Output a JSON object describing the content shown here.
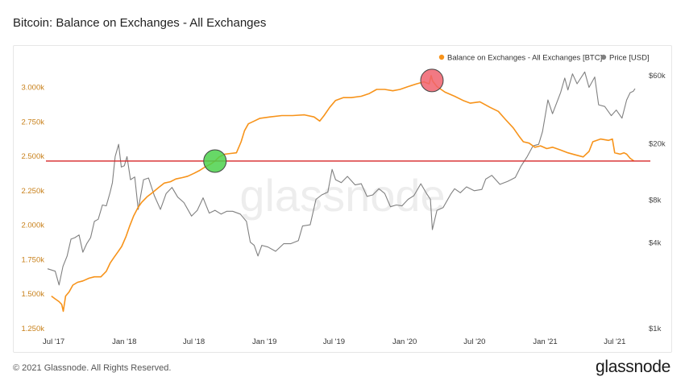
{
  "page": {
    "title": "Bitcoin: Balance on Exchanges - All Exchanges",
    "footer_copyright": "© 2021 Glassnode. All Rights Reserved.",
    "footer_logo": "glassnode",
    "watermark": "glassnode"
  },
  "colors": {
    "balance": "#f7931a",
    "price": "#808080",
    "reference_line": "#d62728",
    "marker_low": "#4cd14c",
    "marker_high": "#f0616d",
    "left_axis_text": "#c8801a",
    "right_axis_text": "#444444"
  },
  "chart_data": {
    "type": "line",
    "legend_position": "top-right",
    "grid": false,
    "x_ticks": [
      "Jul '17",
      "Jan '18",
      "Jul '18",
      "Jan '19",
      "Jul '19",
      "Jan '20",
      "Jul '20",
      "Jan '21",
      "Jul '21"
    ],
    "x_tick_dates": [
      "2017-07-01",
      "2018-01-01",
      "2018-07-01",
      "2019-01-01",
      "2019-07-01",
      "2020-01-01",
      "2020-07-01",
      "2021-01-01",
      "2021-07-01"
    ],
    "x_range": [
      "2017-06-15",
      "2021-08-25"
    ],
    "y_left": {
      "ticks": [
        1250,
        1500,
        1750,
        2000,
        2250,
        2500,
        2750,
        3000
      ],
      "tick_labels": [
        "1.250k",
        "1.500k",
        "1.750k",
        "2.000k",
        "2.250k",
        "2.500k",
        "2.750k",
        "3.000k"
      ],
      "range": [
        1250,
        3085
      ],
      "unit": "BTC"
    },
    "y_right": {
      "scale": "log",
      "ticks": [
        1000,
        4000,
        8000,
        20000,
        60000
      ],
      "tick_labels": [
        "$1k",
        "$4k",
        "$8k",
        "$20k",
        "$60k"
      ],
      "range": [
        1000,
        60000
      ],
      "unit": "USD"
    },
    "reference_line": {
      "axis": "left",
      "value": 2460
    },
    "markers": [
      {
        "date": "2018-08-25",
        "value": 2460,
        "axis": "left",
        "color_key": "marker_low"
      },
      {
        "date": "2020-03-12",
        "value": 3045,
        "axis": "left",
        "color_key": "marker_high"
      }
    ],
    "series": [
      {
        "name": "Balance on Exchanges - All Exchanges [BTC]",
        "axis": "left",
        "color_key": "balance",
        "points": [
          [
            "2017-06-25",
            1480
          ],
          [
            "2017-07-05",
            1460
          ],
          [
            "2017-07-15",
            1440
          ],
          [
            "2017-07-22",
            1420
          ],
          [
            "2017-07-26",
            1370
          ],
          [
            "2017-08-01",
            1480
          ],
          [
            "2017-08-10",
            1510
          ],
          [
            "2017-08-20",
            1560
          ],
          [
            "2017-09-01",
            1580
          ],
          [
            "2017-09-15",
            1590
          ],
          [
            "2017-10-01",
            1610
          ],
          [
            "2017-10-15",
            1620
          ],
          [
            "2017-11-01",
            1620
          ],
          [
            "2017-11-15",
            1660
          ],
          [
            "2017-11-25",
            1720
          ],
          [
            "2017-12-05",
            1760
          ],
          [
            "2017-12-15",
            1800
          ],
          [
            "2017-12-25",
            1840
          ],
          [
            "2018-01-05",
            1910
          ],
          [
            "2018-01-15",
            1990
          ],
          [
            "2018-01-25",
            2060
          ],
          [
            "2018-02-05",
            2120
          ],
          [
            "2018-02-15",
            2160
          ],
          [
            "2018-03-01",
            2200
          ],
          [
            "2018-03-15",
            2230
          ],
          [
            "2018-04-01",
            2270
          ],
          [
            "2018-04-15",
            2300
          ],
          [
            "2018-05-01",
            2310
          ],
          [
            "2018-05-15",
            2330
          ],
          [
            "2018-06-01",
            2340
          ],
          [
            "2018-06-15",
            2350
          ],
          [
            "2018-07-01",
            2370
          ],
          [
            "2018-07-15",
            2390
          ],
          [
            "2018-08-01",
            2420
          ],
          [
            "2018-08-15",
            2440
          ],
          [
            "2018-08-25",
            2460
          ],
          [
            "2018-09-05",
            2490
          ],
          [
            "2018-09-20",
            2510
          ],
          [
            "2018-10-05",
            2515
          ],
          [
            "2018-10-20",
            2520
          ],
          [
            "2018-11-01",
            2600
          ],
          [
            "2018-11-10",
            2680
          ],
          [
            "2018-11-20",
            2730
          ],
          [
            "2018-12-05",
            2750
          ],
          [
            "2018-12-20",
            2770
          ],
          [
            "2019-01-15",
            2780
          ],
          [
            "2019-02-15",
            2790
          ],
          [
            "2019-03-15",
            2790
          ],
          [
            "2019-04-15",
            2795
          ],
          [
            "2019-05-10",
            2780
          ],
          [
            "2019-05-25",
            2750
          ],
          [
            "2019-06-05",
            2790
          ],
          [
            "2019-06-20",
            2850
          ],
          [
            "2019-07-05",
            2900
          ],
          [
            "2019-07-25",
            2920
          ],
          [
            "2019-08-15",
            2920
          ],
          [
            "2019-09-10",
            2930
          ],
          [
            "2019-10-01",
            2950
          ],
          [
            "2019-10-20",
            2980
          ],
          [
            "2019-11-10",
            2980
          ],
          [
            "2019-12-01",
            2970
          ],
          [
            "2019-12-20",
            2980
          ],
          [
            "2020-01-10",
            3000
          ],
          [
            "2020-02-01",
            3020
          ],
          [
            "2020-02-20",
            3035
          ],
          [
            "2020-03-05",
            3020
          ],
          [
            "2020-03-10",
            3080
          ],
          [
            "2020-03-14",
            3040
          ],
          [
            "2020-03-25",
            3000
          ],
          [
            "2020-04-15",
            2960
          ],
          [
            "2020-05-10",
            2930
          ],
          [
            "2020-06-01",
            2900
          ],
          [
            "2020-06-20",
            2880
          ],
          [
            "2020-07-15",
            2890
          ],
          [
            "2020-08-10",
            2850
          ],
          [
            "2020-09-01",
            2820
          ],
          [
            "2020-09-20",
            2760
          ],
          [
            "2020-10-10",
            2700
          ],
          [
            "2020-10-25",
            2640
          ],
          [
            "2020-11-05",
            2600
          ],
          [
            "2020-11-20",
            2590
          ],
          [
            "2020-12-05",
            2560
          ],
          [
            "2020-12-20",
            2570
          ],
          [
            "2021-01-05",
            2550
          ],
          [
            "2021-01-20",
            2560
          ],
          [
            "2021-02-10",
            2540
          ],
          [
            "2021-03-01",
            2520
          ],
          [
            "2021-03-20",
            2505
          ],
          [
            "2021-04-10",
            2490
          ],
          [
            "2021-04-25",
            2530
          ],
          [
            "2021-05-05",
            2600
          ],
          [
            "2021-05-25",
            2620
          ],
          [
            "2021-06-15",
            2610
          ],
          [
            "2021-06-25",
            2620
          ],
          [
            "2021-07-01",
            2520
          ],
          [
            "2021-07-15",
            2510
          ],
          [
            "2021-07-25",
            2520
          ],
          [
            "2021-08-01",
            2510
          ],
          [
            "2021-08-10",
            2480
          ],
          [
            "2021-08-20",
            2460
          ]
        ]
      },
      {
        "name": "Price [USD]",
        "axis": "right",
        "color_key": "price",
        "points": [
          [
            "2017-06-15",
            2600
          ],
          [
            "2017-06-25",
            2550
          ],
          [
            "2017-07-05",
            2500
          ],
          [
            "2017-07-15",
            2000
          ],
          [
            "2017-07-25",
            2700
          ],
          [
            "2017-08-05",
            3200
          ],
          [
            "2017-08-15",
            4200
          ],
          [
            "2017-08-25",
            4300
          ],
          [
            "2017-09-05",
            4500
          ],
          [
            "2017-09-15",
            3400
          ],
          [
            "2017-09-25",
            3900
          ],
          [
            "2017-10-05",
            4300
          ],
          [
            "2017-10-15",
            5600
          ],
          [
            "2017-10-25",
            5800
          ],
          [
            "2017-11-05",
            7300
          ],
          [
            "2017-11-15",
            7200
          ],
          [
            "2017-11-25",
            9000
          ],
          [
            "2017-12-01",
            10500
          ],
          [
            "2017-12-08",
            16000
          ],
          [
            "2017-12-17",
            19500
          ],
          [
            "2017-12-24",
            13500
          ],
          [
            "2018-01-01",
            13800
          ],
          [
            "2018-01-08",
            16000
          ],
          [
            "2018-01-17",
            11000
          ],
          [
            "2018-01-28",
            11500
          ],
          [
            "2018-02-06",
            6800
          ],
          [
            "2018-02-20",
            11000
          ],
          [
            "2018-03-05",
            11300
          ],
          [
            "2018-03-20",
            8500
          ],
          [
            "2018-04-05",
            6800
          ],
          [
            "2018-04-20",
            8800
          ],
          [
            "2018-05-05",
            9700
          ],
          [
            "2018-05-20",
            8300
          ],
          [
            "2018-06-05",
            7600
          ],
          [
            "2018-06-25",
            6100
          ],
          [
            "2018-07-10",
            6700
          ],
          [
            "2018-07-25",
            8200
          ],
          [
            "2018-08-10",
            6400
          ],
          [
            "2018-08-25",
            6700
          ],
          [
            "2018-09-10",
            6300
          ],
          [
            "2018-09-25",
            6600
          ],
          [
            "2018-10-10",
            6600
          ],
          [
            "2018-10-30",
            6300
          ],
          [
            "2018-11-15",
            5600
          ],
          [
            "2018-11-25",
            4000
          ],
          [
            "2018-12-05",
            3800
          ],
          [
            "2018-12-15",
            3200
          ],
          [
            "2018-12-25",
            3800
          ],
          [
            "2019-01-10",
            3700
          ],
          [
            "2019-01-30",
            3450
          ],
          [
            "2019-02-20",
            3900
          ],
          [
            "2019-03-10",
            3900
          ],
          [
            "2019-03-30",
            4100
          ],
          [
            "2019-04-10",
            5200
          ],
          [
            "2019-04-30",
            5300
          ],
          [
            "2019-05-15",
            8000
          ],
          [
            "2019-05-30",
            8600
          ],
          [
            "2019-06-15",
            9000
          ],
          [
            "2019-06-26",
            13000
          ],
          [
            "2019-07-05",
            11000
          ],
          [
            "2019-07-20",
            10500
          ],
          [
            "2019-08-05",
            11600
          ],
          [
            "2019-08-25",
            10100
          ],
          [
            "2019-09-10",
            10300
          ],
          [
            "2019-09-25",
            8400
          ],
          [
            "2019-10-10",
            8600
          ],
          [
            "2019-10-26",
            9500
          ],
          [
            "2019-11-10",
            8800
          ],
          [
            "2019-11-25",
            7100
          ],
          [
            "2019-12-10",
            7300
          ],
          [
            "2019-12-25",
            7200
          ],
          [
            "2020-01-10",
            8000
          ],
          [
            "2020-01-25",
            8500
          ],
          [
            "2020-02-12",
            10300
          ],
          [
            "2020-02-28",
            8700
          ],
          [
            "2020-03-08",
            8000
          ],
          [
            "2020-03-13",
            4900
          ],
          [
            "2020-03-25",
            6700
          ],
          [
            "2020-04-10",
            7000
          ],
          [
            "2020-04-30",
            8700
          ],
          [
            "2020-05-10",
            9500
          ],
          [
            "2020-05-25",
            8900
          ],
          [
            "2020-06-10",
            9800
          ],
          [
            "2020-06-30",
            9200
          ],
          [
            "2020-07-20",
            9400
          ],
          [
            "2020-07-30",
            11100
          ],
          [
            "2020-08-15",
            11800
          ],
          [
            "2020-09-05",
            10200
          ],
          [
            "2020-09-25",
            10700
          ],
          [
            "2020-10-15",
            11400
          ],
          [
            "2020-10-30",
            13700
          ],
          [
            "2020-11-15",
            16000
          ],
          [
            "2020-11-30",
            19000
          ],
          [
            "2020-12-15",
            19500
          ],
          [
            "2020-12-25",
            24000
          ],
          [
            "2021-01-08",
            40000
          ],
          [
            "2021-01-20",
            32000
          ],
          [
            "2021-02-10",
            45000
          ],
          [
            "2021-02-21",
            57000
          ],
          [
            "2021-03-01",
            47000
          ],
          [
            "2021-03-13",
            61000
          ],
          [
            "2021-03-25",
            52000
          ],
          [
            "2021-04-14",
            63000
          ],
          [
            "2021-04-25",
            49000
          ],
          [
            "2021-05-10",
            58000
          ],
          [
            "2021-05-20",
            37000
          ],
          [
            "2021-06-05",
            36000
          ],
          [
            "2021-06-22",
            31000
          ],
          [
            "2021-07-05",
            34000
          ],
          [
            "2021-07-20",
            29800
          ],
          [
            "2021-08-01",
            40000
          ],
          [
            "2021-08-10",
            45000
          ],
          [
            "2021-08-18",
            46000
          ],
          [
            "2021-08-23",
            48000
          ]
        ]
      }
    ]
  }
}
